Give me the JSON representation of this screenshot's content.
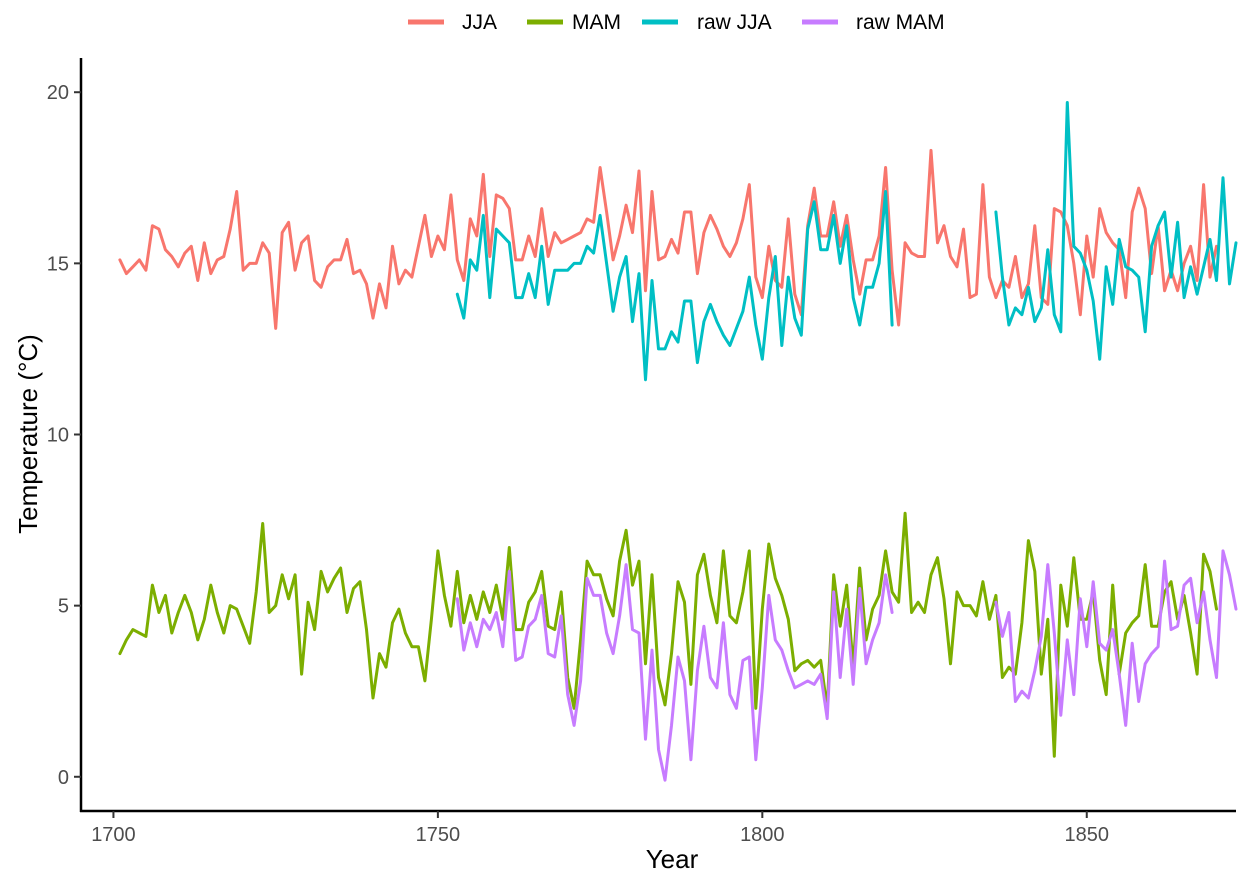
{
  "chart_data": {
    "type": "line",
    "title": "",
    "xlabel": "Year",
    "ylabel": "Temperature (°C)",
    "xlim": [
      1695,
      1873
    ],
    "ylim": [
      -1,
      21
    ],
    "x_ticks": [
      1700,
      1750,
      1800,
      1850
    ],
    "y_ticks": [
      0,
      5,
      10,
      15,
      20
    ],
    "grid": false,
    "legend_position": "top",
    "series": [
      {
        "name": "JJA",
        "color": "#F8766D",
        "x_start": 1701,
        "values": [
          15.1,
          14.7,
          14.9,
          15.1,
          14.8,
          16.1,
          16.0,
          15.4,
          15.2,
          14.9,
          15.3,
          15.5,
          14.5,
          15.6,
          14.7,
          15.1,
          15.2,
          16.0,
          17.1,
          14.8,
          15.0,
          15.0,
          15.6,
          15.3,
          13.1,
          15.9,
          16.2,
          14.8,
          15.6,
          15.8,
          14.5,
          14.3,
          14.9,
          15.1,
          15.1,
          15.7,
          14.7,
          14.8,
          14.4,
          13.4,
          14.4,
          13.7,
          15.5,
          14.4,
          14.8,
          14.6,
          15.5,
          16.4,
          15.2,
          15.8,
          15.4,
          17.0,
          15.1,
          14.5,
          16.3,
          15.8,
          17.6,
          15.2,
          17.0,
          16.9,
          16.6,
          15.1,
          15.1,
          15.8,
          15.2,
          16.6,
          15.2,
          15.9,
          15.6,
          15.7,
          15.8,
          15.9,
          16.3,
          16.2,
          17.8,
          16.5,
          15.1,
          15.8,
          16.7,
          15.9,
          17.7,
          14.2,
          17.1,
          15.1,
          15.2,
          15.7,
          15.3,
          16.5,
          16.5,
          14.7,
          15.9,
          16.4,
          16.0,
          15.5,
          15.2,
          15.6,
          16.3,
          17.3,
          14.6,
          14.0,
          15.5,
          14.5,
          14.3,
          16.3,
          14.1,
          13.5,
          16.1,
          17.2,
          15.8,
          15.8,
          16.8,
          15.5,
          16.4,
          15.1,
          14.1,
          15.1,
          15.1,
          15.8,
          17.8,
          14.8,
          13.2,
          15.6,
          15.3,
          15.2,
          15.2,
          18.3,
          15.6,
          16.1,
          15.2,
          14.9,
          16.0,
          14.0,
          14.1,
          17.3,
          14.6,
          14.0,
          14.5,
          14.3,
          15.2,
          14.0,
          14.4,
          16.1,
          14.0,
          13.8,
          16.6,
          16.5,
          16.1,
          15.0,
          13.5,
          15.8,
          14.6,
          16.6,
          15.9,
          15.6,
          15.4,
          14.0,
          16.5,
          17.2,
          16.6,
          14.7,
          16.1,
          14.2,
          14.8,
          14.2,
          15.0,
          15.5,
          14.5,
          17.3,
          14.6,
          15.5
        ]
      },
      {
        "name": "MAM",
        "color": "#7CAE00",
        "x_start": 1701,
        "values": [
          3.6,
          4.0,
          4.3,
          4.2,
          4.1,
          5.6,
          4.8,
          5.3,
          4.2,
          4.8,
          5.3,
          4.8,
          4.0,
          4.6,
          5.6,
          4.8,
          4.2,
          5.0,
          4.9,
          4.4,
          3.9,
          5.4,
          7.4,
          4.8,
          5.0,
          5.9,
          5.2,
          5.9,
          3.0,
          5.1,
          4.3,
          6.0,
          5.4,
          5.8,
          6.1,
          4.8,
          5.5,
          5.7,
          4.3,
          2.3,
          3.6,
          3.2,
          4.5,
          4.9,
          4.2,
          3.8,
          3.8,
          2.8,
          4.6,
          6.6,
          5.3,
          4.4,
          6.0,
          4.5,
          5.3,
          4.6,
          5.4,
          4.8,
          5.6,
          4.6,
          6.7,
          4.3,
          4.3,
          5.1,
          5.4,
          6.0,
          4.4,
          4.3,
          5.4,
          2.9,
          2.0,
          4.0,
          6.3,
          5.9,
          5.9,
          5.2,
          4.7,
          6.3,
          7.2,
          5.6,
          6.3,
          3.3,
          5.9,
          2.9,
          2.1,
          3.6,
          5.7,
          5.1,
          2.7,
          5.9,
          6.5,
          5.3,
          4.5,
          6.6,
          4.7,
          4.5,
          5.4,
          6.6,
          2.0,
          4.9,
          6.8,
          5.8,
          5.3,
          4.6,
          3.1,
          3.3,
          3.4,
          3.2,
          3.4,
          2.0,
          5.9,
          4.4,
          5.6,
          3.2,
          6.1,
          4.0,
          4.9,
          5.3,
          6.6,
          5.4,
          5.1,
          7.7,
          4.8,
          5.1,
          4.8,
          5.9,
          6.4,
          5.2,
          3.3,
          5.4,
          5.0,
          5.0,
          4.7,
          5.7,
          4.6,
          5.3,
          2.9,
          3.2,
          3.0,
          4.5,
          6.9,
          6.0,
          3.0,
          4.6,
          0.6,
          5.6,
          4.4,
          6.4,
          4.6,
          4.6,
          5.4,
          3.4,
          2.4,
          5.6,
          3.0,
          4.2,
          4.5,
          4.7,
          6.2,
          4.4,
          4.4,
          5.4,
          5.7,
          4.6,
          5.3,
          4.2,
          3.0,
          6.5,
          6.0,
          4.9
        ]
      },
      {
        "name": "raw JJA",
        "color": "#00BFC4",
        "x_start": 1753,
        "values": [
          14.1,
          13.4,
          15.1,
          14.8,
          16.4,
          14.0,
          16.0,
          15.8,
          15.6,
          14.0,
          14.0,
          14.7,
          14.0,
          15.5,
          13.8,
          14.8,
          14.8,
          14.8,
          15.0,
          15.0,
          15.5,
          15.3,
          16.4,
          15.0,
          13.6,
          14.6,
          15.2,
          13.3,
          14.7,
          11.6,
          14.5,
          12.5,
          12.5,
          13.0,
          12.7,
          13.9,
          13.9,
          12.1,
          13.3,
          13.8,
          13.3,
          12.9,
          12.6,
          13.1,
          13.6,
          14.6,
          13.2,
          12.2,
          14.0,
          15.2,
          12.6,
          14.6,
          13.4,
          12.9,
          16.0,
          16.8,
          15.4,
          15.4,
          16.4,
          15.0,
          16.1,
          14.0,
          13.2,
          14.3,
          14.3,
          15.0,
          17.1,
          13.2,
          null,
          null,
          null,
          null,
          null,
          null,
          null,
          null,
          null,
          null,
          null,
          null,
          null,
          null,
          null,
          16.5,
          14.6,
          13.2,
          13.7,
          13.5,
          14.3,
          13.3,
          13.7,
          15.4,
          13.5,
          13.0,
          19.7,
          15.5,
          15.3,
          14.8,
          13.9,
          12.2,
          14.9,
          13.8,
          15.7,
          14.9,
          14.8,
          14.6,
          13.0,
          15.5,
          16.1,
          16.5,
          14.6,
          16.2,
          14.0,
          14.9,
          14.1,
          14.9,
          15.7,
          14.5,
          17.5,
          14.4,
          15.6
        ]
      },
      {
        "name": "raw MAM",
        "color": "#C77CFF",
        "x_start": 1753,
        "values": [
          5.2,
          3.7,
          4.5,
          3.8,
          4.6,
          4.3,
          4.8,
          3.8,
          6.0,
          3.4,
          3.5,
          4.4,
          4.6,
          5.3,
          3.6,
          3.5,
          4.7,
          2.4,
          1.5,
          2.8,
          5.8,
          5.3,
          5.3,
          4.2,
          3.6,
          4.7,
          6.2,
          4.3,
          4.2,
          1.1,
          3.7,
          0.8,
          -0.1,
          1.5,
          3.5,
          2.8,
          0.5,
          3.1,
          4.4,
          2.9,
          2.6,
          4.5,
          2.4,
          2.0,
          3.4,
          3.5,
          0.5,
          2.6,
          5.3,
          4.0,
          3.7,
          3.1,
          2.6,
          2.7,
          2.8,
          2.7,
          3.0,
          1.7,
          5.4,
          2.9,
          4.9,
          2.7,
          5.5,
          3.3,
          4.0,
          4.5,
          5.9,
          4.8,
          null,
          null,
          null,
          null,
          null,
          null,
          null,
          null,
          null,
          null,
          null,
          null,
          null,
          null,
          null,
          5.1,
          4.1,
          4.8,
          2.2,
          2.5,
          2.3,
          3.1,
          4.1,
          6.2,
          4.2,
          1.8,
          4.0,
          2.4,
          5.2,
          3.8,
          5.7,
          3.9,
          3.7,
          4.3,
          3.0,
          1.5,
          3.9,
          2.2,
          3.3,
          3.6,
          3.8,
          6.3,
          4.3,
          4.4,
          5.6,
          5.8,
          4.5,
          5.4,
          4.0,
          2.9,
          6.6,
          5.9,
          4.9
        ]
      }
    ]
  }
}
